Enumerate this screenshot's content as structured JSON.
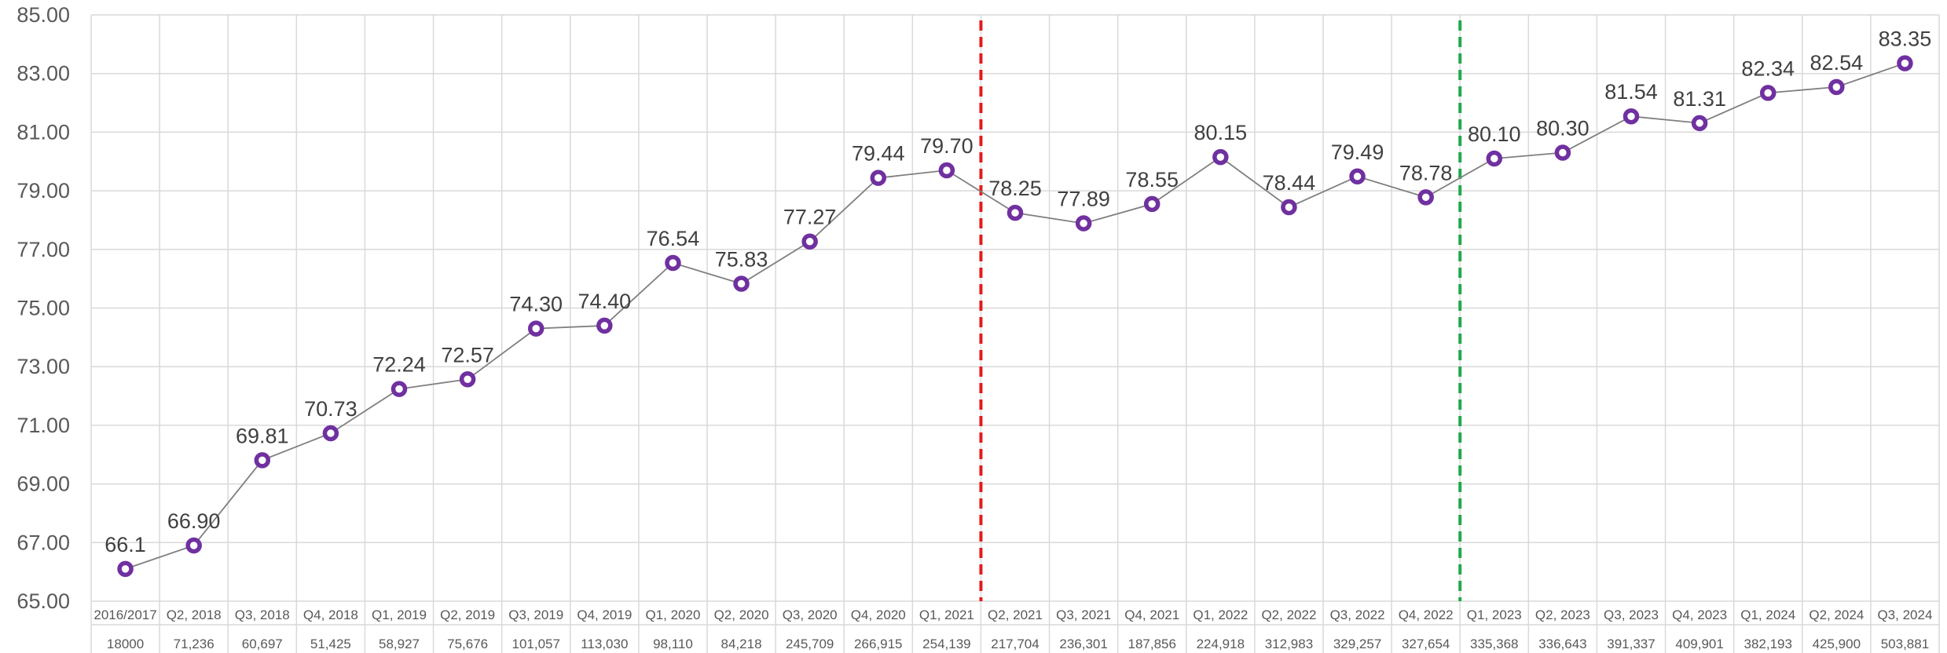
{
  "chart_data": {
    "type": "line",
    "title": "",
    "xlabel": "",
    "ylabel": "",
    "ylim": [
      65,
      85
    ],
    "y_ticks": [
      "65.00",
      "67.00",
      "69.00",
      "71.00",
      "73.00",
      "75.00",
      "77.00",
      "79.00",
      "81.00",
      "83.00",
      "85.00"
    ],
    "categories": [
      "2016/2017",
      "Q2, 2018",
      "Q3, 2018",
      "Q4, 2018",
      "Q1, 2019",
      "Q2, 2019",
      "Q3, 2019",
      "Q4, 2019",
      "Q1, 2020",
      "Q2, 2020",
      "Q3, 2020",
      "Q4, 2020",
      "Q1, 2021",
      "Q2, 2021",
      "Q3, 2021",
      "Q4, 2021",
      "Q1, 2022",
      "Q2, 2022",
      "Q3, 2022",
      "Q4, 2022",
      "Q1, 2023",
      "Q2, 2023",
      "Q3, 2023",
      "Q4, 2023",
      "Q1, 2024",
      "Q2, 2024",
      "Q3, 2024"
    ],
    "sample_sizes": [
      "18000",
      "71,236",
      "60,697",
      "51,425",
      "58,927",
      "75,676",
      "101,057",
      "113,030",
      "98,110",
      "84,218",
      "245,709",
      "266,915",
      "254,139",
      "217,704",
      "236,301",
      "187,856",
      "224,918",
      "312,983",
      "329,257",
      "327,654",
      "335,368",
      "336,643",
      "391,337",
      "409,901",
      "382,193",
      "425,900",
      "503,881"
    ],
    "values": [
      66.1,
      66.9,
      69.81,
      70.73,
      72.24,
      72.57,
      74.3,
      74.4,
      76.54,
      75.83,
      77.27,
      79.44,
      79.7,
      78.25,
      77.89,
      78.55,
      80.15,
      78.44,
      79.49,
      78.78,
      80.1,
      80.3,
      81.54,
      81.31,
      82.34,
      82.54,
      83.35
    ],
    "data_labels": [
      "66.1",
      "66.90",
      "69.81",
      "70.73",
      "72.24",
      "72.57",
      "74.30",
      "74.40",
      "76.54",
      "75.83",
      "77.27",
      "79.44",
      "79.70",
      "78.25",
      "77.89",
      "78.55",
      "80.15",
      "78.44",
      "79.49",
      "78.78",
      "80.10",
      "80.30",
      "81.54",
      "81.31",
      "82.34",
      "82.54",
      "83.35"
    ],
    "reference_lines": [
      {
        "between": [
          "Q1, 2021",
          "Q2, 2021"
        ],
        "color": "#e41a1c",
        "style": "dashed"
      },
      {
        "between": [
          "Q4, 2022",
          "Q1, 2023"
        ],
        "color": "#22a84b",
        "style": "dashed"
      }
    ],
    "grid": true,
    "legend": "none",
    "colors": {
      "line": "#7f7f7f",
      "marker_stroke": "#7030a0",
      "marker_fill": "#ffffff",
      "grid": "#d9d9d9",
      "tick_text": "#595959",
      "label_text": "#404040"
    }
  }
}
